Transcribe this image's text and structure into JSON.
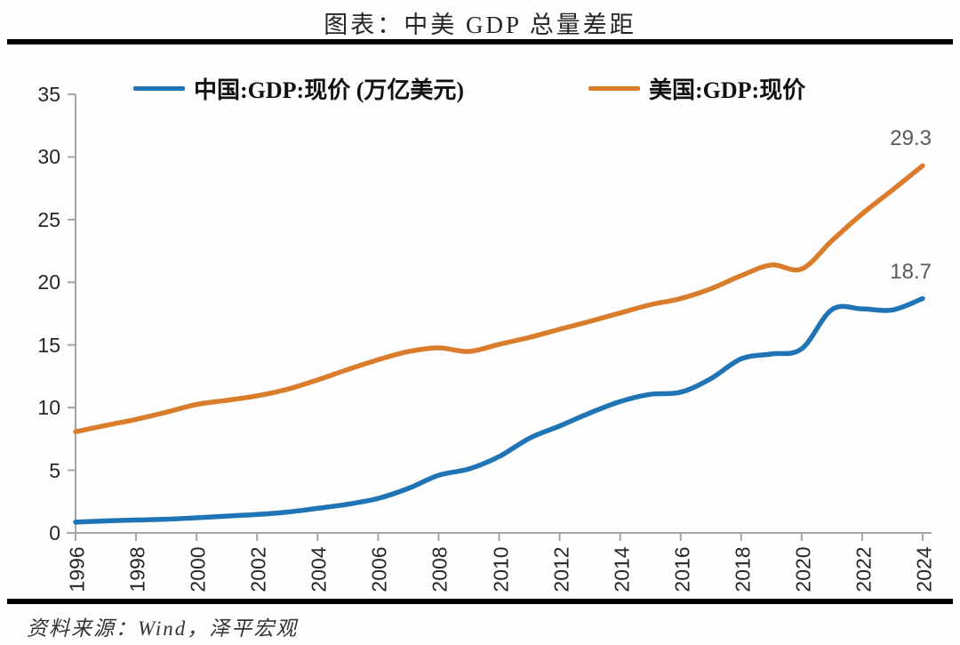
{
  "title": "图表：中美 GDP 总量差距",
  "source": "资料来源：Wind，泽平宏观",
  "colors": {
    "china_line": "#1f74b5",
    "us_line": "#d97d2d",
    "axis": "#a6a6a6",
    "tick_label": "#262626",
    "data_label": "#595959",
    "rule": "#000000"
  },
  "chart_data": {
    "type": "line",
    "title": "图表：中美 GDP 总量差距",
    "xlabel": "",
    "ylabel": "",
    "ylim": [
      0,
      35
    ],
    "yticks": [
      0,
      5,
      10,
      15,
      20,
      25,
      30,
      35
    ],
    "xticks": [
      1996,
      1998,
      2000,
      2002,
      2004,
      2006,
      2008,
      2010,
      2012,
      2014,
      2016,
      2018,
      2020,
      2022,
      2024
    ],
    "grid": false,
    "smooth": true,
    "legend_position": "top",
    "x": [
      1996,
      1997,
      1998,
      1999,
      2000,
      2001,
      2002,
      2003,
      2004,
      2005,
      2006,
      2007,
      2008,
      2009,
      2010,
      2011,
      2012,
      2013,
      2014,
      2015,
      2016,
      2017,
      2018,
      2019,
      2020,
      2021,
      2022,
      2023,
      2024
    ],
    "series": [
      {
        "name": "中国:GDP:现价 (万亿美元)",
        "color_key": "china_line",
        "end_label": "18.7",
        "values": [
          0.86,
          0.96,
          1.03,
          1.09,
          1.21,
          1.34,
          1.47,
          1.66,
          1.96,
          2.29,
          2.75,
          3.55,
          4.6,
          5.1,
          6.09,
          7.55,
          8.53,
          9.57,
          10.48,
          11.06,
          11.23,
          12.31,
          13.89,
          14.28,
          14.69,
          17.82,
          17.88,
          17.79,
          18.7
        ]
      },
      {
        "name": "美国:GDP:现价",
        "color_key": "us_line",
        "end_label": "29.3",
        "values": [
          8.07,
          8.58,
          9.06,
          9.63,
          10.25,
          10.58,
          10.94,
          11.46,
          12.21,
          13.04,
          13.82,
          14.47,
          14.77,
          14.48,
          15.05,
          15.6,
          16.25,
          16.88,
          17.55,
          18.21,
          18.7,
          19.48,
          20.53,
          21.38,
          21.06,
          23.32,
          25.46,
          27.36,
          29.3
        ]
      }
    ]
  }
}
